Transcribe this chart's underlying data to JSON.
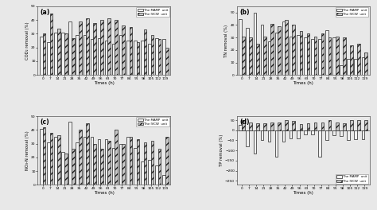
{
  "times": [
    0,
    7,
    14,
    21,
    28,
    35,
    42,
    49,
    56,
    63,
    70,
    77,
    84,
    91,
    98,
    105,
    112,
    119
  ],
  "COD_MAMP": [
    28,
    24,
    31,
    31,
    39,
    29,
    29,
    26,
    27,
    25,
    23,
    29,
    25,
    25,
    25,
    23,
    27,
    26
  ],
  "COD_IVCW": [
    30,
    45,
    34,
    30,
    27,
    39,
    41,
    38,
    40,
    41,
    40,
    36,
    35,
    24,
    33,
    29,
    26,
    20
  ],
  "TN_MAMP": [
    45,
    38,
    50,
    40,
    27,
    34,
    43,
    31,
    32,
    30,
    29,
    29,
    36,
    30,
    8,
    13,
    13,
    14
  ],
  "TN_IVCW": [
    31,
    30,
    25,
    31,
    41,
    39,
    44,
    40,
    35,
    33,
    31,
    33,
    30,
    31,
    30,
    24,
    25,
    18
  ],
  "NO3N_MAMP": [
    41,
    31,
    35,
    24,
    46,
    31,
    35,
    35,
    33,
    33,
    27,
    30,
    35,
    27,
    17,
    18,
    14,
    7
  ],
  "NO3N_IVCW": [
    42,
    38,
    36,
    23,
    26,
    40,
    45,
    30,
    26,
    32,
    40,
    30,
    35,
    33,
    31,
    32,
    26,
    35
  ],
  "TP_MAMP": [
    25,
    -80,
    -115,
    -50,
    -55,
    -130,
    -55,
    -40,
    -40,
    -20,
    -20,
    -130,
    -50,
    -25,
    -30,
    -50,
    -45,
    -45
  ],
  "TP_IVCW": [
    50,
    40,
    35,
    35,
    40,
    40,
    50,
    45,
    30,
    35,
    40,
    40,
    50,
    40,
    35,
    50,
    50,
    50
  ],
  "time_labels": [
    "0",
    "7",
    "14",
    "21",
    "28",
    "35",
    "42",
    "49",
    "56",
    "63",
    "70",
    "77",
    "84",
    "91",
    "98",
    "105",
    "112",
    "119"
  ],
  "bar_width": 0.4,
  "mamp_color": "#f0f0f0",
  "ivcw_hatch": "////",
  "ivcw_facecolor": "#c8c8c8",
  "edge_color": "#222222",
  "legend_mamp": "The MAMP  unit",
  "legend_ivcw": "The IVCW  unit",
  "ylabel_a": "COD₂ removal (%)",
  "ylabel_b": "TN removal (%)",
  "ylabel_c": "NO₃-N removal (%)",
  "ylabel_d": "TP removal (%)",
  "xlabel": "Times (h)",
  "ylim_a": [
    0,
    50
  ],
  "ylim_b": [
    0,
    55
  ],
  "ylim_c": [
    0,
    50
  ],
  "ylim_d": [
    -270,
    70
  ],
  "yticks_a": [
    0,
    10,
    20,
    30,
    40,
    50
  ],
  "yticks_b": [
    0,
    10,
    20,
    30,
    40,
    50
  ],
  "yticks_c": [
    0,
    10,
    20,
    30,
    40,
    50
  ],
  "yticks_d": [
    -250,
    -200,
    -150,
    -100,
    -50,
    0,
    50
  ],
  "subplot_labels": [
    "(a)",
    "(b)",
    "(c)",
    "(d)"
  ],
  "fig_bgcolor": "#e8e8e8"
}
